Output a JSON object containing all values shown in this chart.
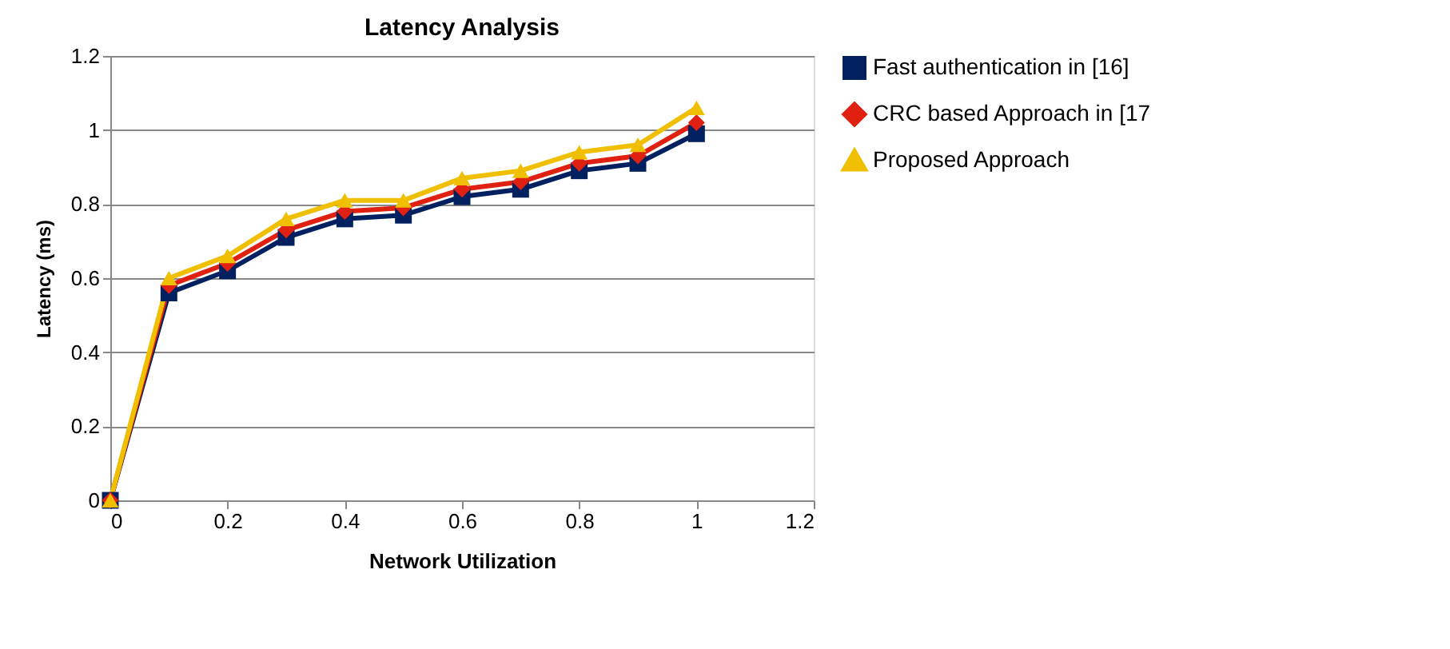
{
  "chart_data": {
    "type": "line",
    "title": "Latency Analysis",
    "xlabel": "Network Utilization",
    "ylabel": "Latency (ms)",
    "x": [
      0,
      0.1,
      0.2,
      0.3,
      0.4,
      0.5,
      0.6,
      0.7,
      0.8,
      0.9,
      1
    ],
    "series": [
      {
        "name": "Fast authentication in [16]",
        "color": "#002060",
        "marker": "square",
        "values": [
          0,
          0.56,
          0.62,
          0.71,
          0.76,
          0.77,
          0.82,
          0.84,
          0.89,
          0.91,
          0.99
        ]
      },
      {
        "name": " CRC based Approach in [17",
        "color": "#e02010",
        "marker": "diamond",
        "values": [
          0,
          0.58,
          0.64,
          0.73,
          0.78,
          0.79,
          0.84,
          0.86,
          0.91,
          0.93,
          1.02
        ]
      },
      {
        "name": "Proposed Approach",
        "color": "#f0c000",
        "marker": "triangle",
        "values": [
          0,
          0.6,
          0.66,
          0.76,
          0.81,
          0.81,
          0.87,
          0.89,
          0.94,
          0.96,
          1.06
        ]
      }
    ],
    "xlim": [
      0,
      1.2
    ],
    "xticks": [
      0,
      0.2,
      0.4,
      0.6,
      0.8,
      1,
      1.2
    ],
    "ylim": [
      0,
      1.2
    ],
    "yticks": [
      0,
      0.2,
      0.4,
      0.6,
      0.8,
      1,
      1.2
    ],
    "grid": "y",
    "legend": "right",
    "line_style": "solid"
  }
}
